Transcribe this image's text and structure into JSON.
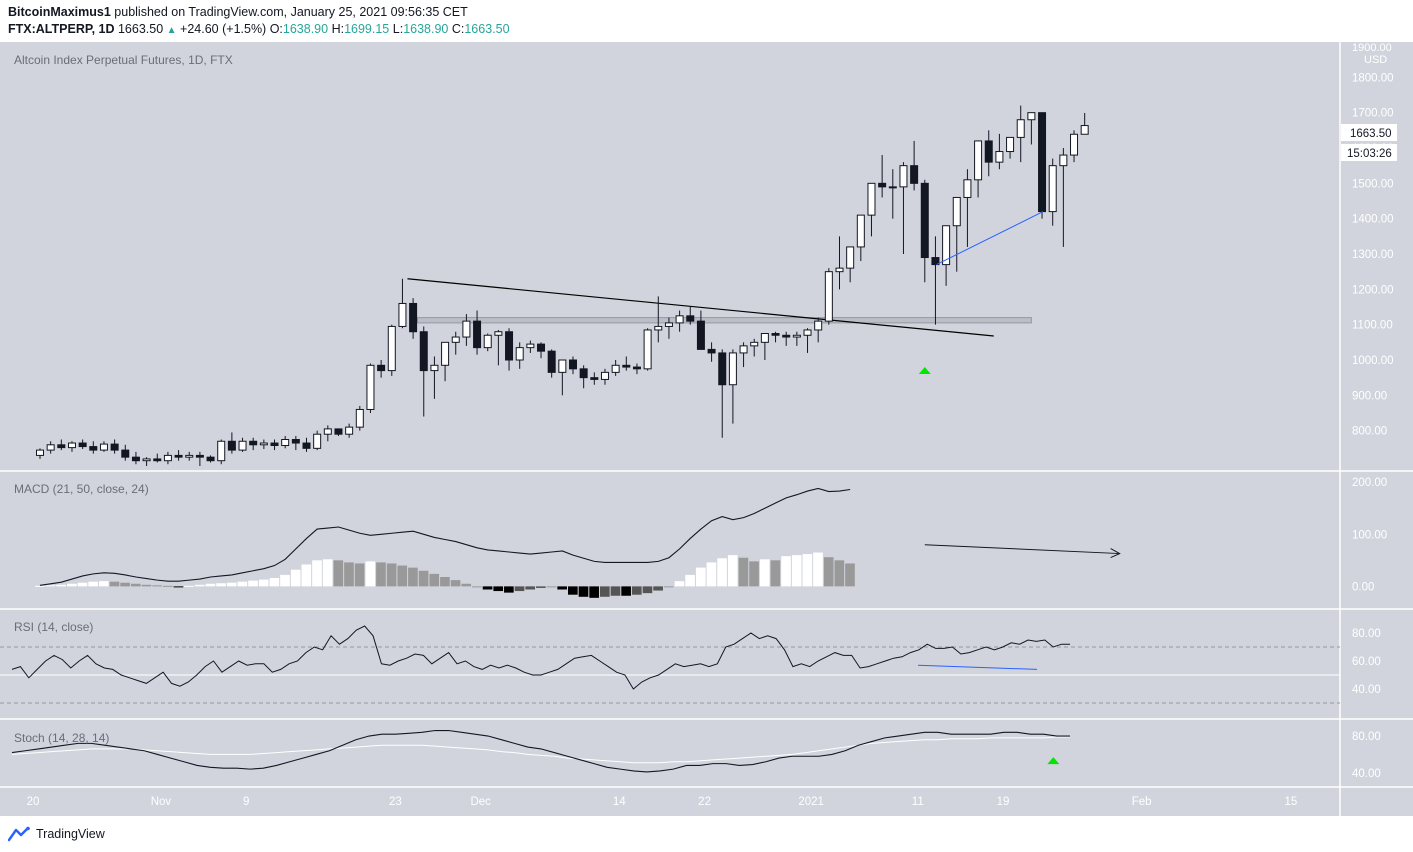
{
  "header": {
    "publisher": "BitcoinMaximus1",
    "published_text": "published on TradingView.com, January 25, 2021 09:56:35 CET",
    "symbol": "FTX:ALTPERP, 1D",
    "last": "1663.50",
    "change": "+24.60 (+1.5%)",
    "o_label": "O:",
    "o_val": "1638.90",
    "h_label": "H:",
    "h_val": "1699.15",
    "l_label": "L:",
    "l_val": "1638.90",
    "c_label": "C:",
    "c_val": "1663.50"
  },
  "footer": {
    "brand": "TradingView"
  },
  "price_panel": {
    "title": "Altcoin Index Perpetual Futures, 1D, FTX",
    "currency": "USD",
    "last_price_tag": "1663.50",
    "countdown_tag": "15:03:26",
    "top_clipped_label": "1900.00"
  },
  "macd_panel": {
    "title": "MACD (21, 50, close, 24)"
  },
  "rsi_panel": {
    "title": "RSI (14, close)"
  },
  "stoch_panel": {
    "title": "Stoch (14, 28, 14)"
  },
  "colors": {
    "background": "#d1d4dc",
    "bull_candle": "#ffffff",
    "bear_candle": "#131722",
    "trendline": "#000000",
    "divergence_line": "#2962ff",
    "signal_arrow": "#00e600",
    "hist_rising": "#ffffff",
    "hist_falling": "#999999"
  },
  "chart_data": [
    {
      "type": "candlestick",
      "title": "Altcoin Index Perpetual Futures, 1D, FTX",
      "ylabel": "USD",
      "ylim": [
        700,
        1900
      ],
      "yticks": [
        "800.00",
        "900.00",
        "1000.00",
        "1100.00",
        "1200.00",
        "1300.00",
        "1400.00",
        "1500.00",
        "1600.00",
        "1700.00",
        "1800.00"
      ],
      "xticks": [
        {
          "label": "20",
          "day": 0
        },
        {
          "label": "Nov",
          "day": 12
        },
        {
          "label": "9",
          "day": 20
        },
        {
          "label": "23",
          "day": 34
        },
        {
          "label": "Dec",
          "day": 42
        },
        {
          "label": "14",
          "day": 55
        },
        {
          "label": "22",
          "day": 63
        },
        {
          "label": "2021",
          "day": 73
        },
        {
          "label": "11",
          "day": 83
        },
        {
          "label": "19",
          "day": 91
        },
        {
          "label": "Feb",
          "day": 104
        },
        {
          "label": "15",
          "day": 118
        }
      ],
      "candles_ohlc": [
        [
          730,
          750,
          720,
          745
        ],
        [
          745,
          770,
          735,
          760
        ],
        [
          760,
          775,
          745,
          752
        ],
        [
          752,
          770,
          740,
          765
        ],
        [
          765,
          775,
          748,
          755
        ],
        [
          755,
          770,
          735,
          745
        ],
        [
          745,
          770,
          740,
          762
        ],
        [
          762,
          775,
          735,
          745
        ],
        [
          745,
          760,
          715,
          725
        ],
        [
          725,
          740,
          705,
          715
        ],
        [
          715,
          725,
          700,
          720
        ],
        [
          720,
          735,
          710,
          715
        ],
        [
          715,
          740,
          705,
          730
        ],
        [
          730,
          745,
          715,
          725
        ],
        [
          725,
          740,
          715,
          730
        ],
        [
          730,
          740,
          700,
          725
        ],
        [
          725,
          730,
          710,
          715
        ],
        [
          715,
          775,
          705,
          770
        ],
        [
          770,
          795,
          735,
          745
        ],
        [
          745,
          780,
          740,
          770
        ],
        [
          770,
          780,
          745,
          760
        ],
        [
          760,
          775,
          748,
          765
        ],
        [
          765,
          775,
          745,
          758
        ],
        [
          758,
          785,
          750,
          775
        ],
        [
          775,
          785,
          745,
          765
        ],
        [
          765,
          780,
          740,
          750
        ],
        [
          750,
          800,
          745,
          790
        ],
        [
          790,
          815,
          770,
          805
        ],
        [
          805,
          805,
          785,
          790
        ],
        [
          790,
          820,
          780,
          810
        ],
        [
          810,
          870,
          800,
          860
        ],
        [
          860,
          990,
          850,
          985
        ],
        [
          985,
          1000,
          950,
          970
        ],
        [
          970,
          1100,
          955,
          1095
        ],
        [
          1095,
          1230,
          1090,
          1160
        ],
        [
          1160,
          1175,
          1060,
          1080
        ],
        [
          1080,
          1095,
          840,
          970
        ],
        [
          970,
          1010,
          890,
          985
        ],
        [
          985,
          1010,
          940,
          1050
        ],
        [
          1050,
          1080,
          1015,
          1065
        ],
        [
          1065,
          1130,
          1040,
          1110
        ],
        [
          1110,
          1140,
          1015,
          1035
        ],
        [
          1035,
          1075,
          1025,
          1070
        ],
        [
          1070,
          1085,
          985,
          1080
        ],
        [
          1080,
          1090,
          970,
          1000
        ],
        [
          1000,
          1050,
          975,
          1035
        ],
        [
          1035,
          1055,
          1020,
          1045
        ],
        [
          1045,
          1050,
          1005,
          1025
        ],
        [
          1025,
          1030,
          950,
          965
        ],
        [
          965,
          1000,
          900,
          1000
        ],
        [
          1000,
          1010,
          960,
          975
        ],
        [
          975,
          985,
          920,
          950
        ],
        [
          950,
          965,
          930,
          945
        ],
        [
          945,
          975,
          930,
          965
        ],
        [
          965,
          1000,
          955,
          985
        ],
        [
          985,
          1010,
          970,
          980
        ],
        [
          980,
          990,
          960,
          975
        ],
        [
          975,
          1090,
          970,
          1085
        ],
        [
          1085,
          1180,
          1050,
          1095
        ],
        [
          1095,
          1120,
          1060,
          1105
        ],
        [
          1105,
          1140,
          1080,
          1125
        ],
        [
          1125,
          1150,
          1100,
          1110
        ],
        [
          1110,
          1140,
          1060,
          1030
        ],
        [
          1030,
          1050,
          995,
          1020
        ],
        [
          1020,
          1030,
          780,
          930
        ],
        [
          930,
          1030,
          820,
          1020
        ],
        [
          1020,
          1050,
          980,
          1040
        ],
        [
          1040,
          1060,
          1010,
          1050
        ],
        [
          1050,
          1070,
          1000,
          1075
        ],
        [
          1075,
          1080,
          1050,
          1070
        ],
        [
          1070,
          1080,
          1040,
          1065
        ],
        [
          1065,
          1080,
          1040,
          1070
        ],
        [
          1070,
          1090,
          1020,
          1085
        ],
        [
          1085,
          1120,
          1050,
          1110
        ],
        [
          1110,
          1260,
          1100,
          1250
        ],
        [
          1250,
          1350,
          1200,
          1260
        ],
        [
          1260,
          1300,
          1220,
          1320
        ],
        [
          1320,
          1380,
          1280,
          1410
        ],
        [
          1410,
          1500,
          1350,
          1500
        ],
        [
          1500,
          1580,
          1460,
          1490
        ],
        [
          1490,
          1540,
          1400,
          1490
        ],
        [
          1490,
          1560,
          1300,
          1550
        ],
        [
          1550,
          1620,
          1480,
          1500
        ],
        [
          1500,
          1510,
          1220,
          1290
        ],
        [
          1290,
          1350,
          1100,
          1270
        ],
        [
          1270,
          1300,
          1210,
          1380
        ],
        [
          1380,
          1450,
          1250,
          1460
        ],
        [
          1460,
          1540,
          1320,
          1510
        ],
        [
          1510,
          1570,
          1460,
          1620
        ],
        [
          1620,
          1650,
          1520,
          1560
        ],
        [
          1560,
          1640,
          1540,
          1590
        ],
        [
          1590,
          1620,
          1570,
          1630
        ],
        [
          1630,
          1720,
          1560,
          1680
        ],
        [
          1680,
          1690,
          1610,
          1700
        ],
        [
          1700,
          1700,
          1400,
          1420
        ],
        [
          1420,
          1570,
          1380,
          1550
        ],
        [
          1550,
          1600,
          1320,
          1580
        ],
        [
          1580,
          1650,
          1560,
          1638.9
        ],
        [
          1638.9,
          1699.15,
          1638.9,
          1663.5
        ]
      ],
      "annotations": {
        "descending_trendline": [
          [
            34,
            1230
          ],
          [
            86,
            1080
          ]
        ],
        "support_zone": {
          "x0": 34,
          "x1": 93,
          "y_low": 1105,
          "y_high": 1120
        },
        "bull_divergence_line": [
          [
            84,
            1270
          ],
          [
            94,
            1420
          ]
        ],
        "signal_arrow": {
          "day": 83,
          "price": 1000
        }
      }
    },
    {
      "type": "line",
      "title": "MACD (21, 50, close, 24)",
      "ylim": [
        -30,
        210
      ],
      "yticks": [
        "0.00",
        "100.00",
        "200.00"
      ],
      "series": [
        {
          "name": "MACD",
          "values": [
            2,
            5,
            8,
            14,
            20,
            24,
            26,
            25,
            22,
            18,
            15,
            12,
            10,
            10,
            12,
            14,
            18,
            20,
            22,
            26,
            30,
            34,
            40,
            52,
            72,
            92,
            110,
            112,
            114,
            108,
            102,
            98,
            100,
            102,
            104,
            106,
            100,
            94,
            90,
            86,
            80,
            74,
            70,
            68,
            66,
            64,
            62,
            64,
            66,
            68,
            60,
            54,
            48,
            46,
            46,
            46,
            46,
            46,
            48,
            55,
            72,
            92,
            110,
            126,
            134,
            128,
            132,
            140,
            150,
            160,
            170,
            176,
            183,
            188,
            182,
            183,
            186
          ]
        },
        {
          "name": "Histogram",
          "values": [
            1,
            2,
            3,
            5,
            7,
            9,
            10,
            9,
            7,
            5,
            3,
            2,
            1,
            -1,
            1,
            3,
            5,
            6,
            7,
            9,
            11,
            13,
            16,
            22,
            32,
            42,
            50,
            52,
            50,
            46,
            44,
            48,
            46,
            44,
            40,
            36,
            30,
            24,
            18,
            12,
            5,
            0,
            -6,
            -9,
            -12,
            -9,
            -6,
            -3,
            0,
            -6,
            -16,
            -20,
            -22,
            -20,
            -18,
            -18,
            -16,
            -13,
            -8,
            0,
            10,
            22,
            36,
            46,
            54,
            60,
            55,
            48,
            52,
            50,
            58,
            60,
            62,
            65,
            56,
            50,
            44
          ]
        }
      ],
      "annotation": {
        "divergence_arrow_from": [
          83,
          80
        ],
        "divergence_arrow_to": [
          98,
          63
        ]
      }
    },
    {
      "type": "line",
      "title": "RSI (14, close)",
      "ylim": [
        20,
        95
      ],
      "yticks": [
        "40.00",
        "60.00",
        "80.00"
      ],
      "bands": [
        30,
        50,
        70
      ],
      "series": [
        {
          "name": "RSI",
          "values": [
            54,
            56,
            48,
            54,
            60,
            64,
            61,
            55,
            60,
            64,
            58,
            55,
            54,
            50,
            48,
            46,
            44,
            48,
            52,
            44,
            42,
            45,
            50,
            56,
            60,
            52,
            56,
            60,
            57,
            58,
            58,
            52,
            54,
            58,
            60,
            66,
            70,
            68,
            78,
            72,
            76,
            82,
            85,
            78,
            58,
            57,
            60,
            62,
            65,
            64,
            58,
            62,
            66,
            58,
            60,
            56,
            54,
            57,
            55,
            57,
            55,
            52,
            50,
            50,
            52,
            54,
            58,
            62,
            63,
            64,
            60,
            56,
            52,
            50,
            40,
            45,
            48,
            50,
            54,
            58,
            56,
            57,
            58,
            56,
            58,
            70,
            72,
            76,
            80,
            76,
            78,
            76,
            68,
            56,
            58,
            56,
            60,
            63,
            66,
            64,
            64,
            55,
            56,
            58,
            60,
            62,
            63,
            66,
            68,
            72,
            69,
            69,
            70,
            65,
            66,
            68,
            70,
            68,
            70,
            73,
            72,
            75,
            74,
            75,
            70,
            72,
            72
          ]
        }
      ],
      "annotation": {
        "divergence_line": [
          [
            84,
            57
          ],
          [
            98,
            54
          ]
        ]
      }
    },
    {
      "type": "line",
      "title": "Stoch (14, 28, 14)",
      "ylim": [
        30,
        92
      ],
      "yticks": [
        "40.00",
        "80.00"
      ],
      "series": [
        {
          "name": "%K",
          "values": [
            62,
            64,
            66,
            68,
            70,
            72,
            72,
            70,
            68,
            66,
            64,
            60,
            56,
            52,
            48,
            46,
            45,
            45,
            44,
            45,
            48,
            52,
            56,
            60,
            64,
            70,
            76,
            80,
            82,
            82,
            83,
            84,
            86,
            86,
            84,
            82,
            80,
            76,
            72,
            68,
            66,
            62,
            58,
            54,
            50,
            46,
            44,
            42,
            41,
            42,
            44,
            48,
            48,
            50,
            50,
            48,
            49,
            52,
            56,
            58,
            58,
            58,
            60,
            64,
            70,
            74,
            78,
            80,
            82,
            84,
            84,
            82,
            82,
            82,
            82,
            84,
            84,
            82,
            82,
            80,
            80
          ]
        },
        {
          "name": "%D",
          "values": [
            60,
            61,
            62,
            63,
            64,
            65,
            66,
            66,
            66,
            66,
            65,
            64,
            63,
            62,
            61,
            60,
            60,
            60,
            60,
            61,
            62,
            63,
            64,
            65,
            66,
            67,
            68,
            69,
            70,
            70,
            70,
            70,
            69,
            68,
            67,
            66,
            65,
            63,
            62,
            60,
            59,
            58,
            56,
            55,
            54,
            53,
            52,
            51,
            51,
            51,
            52,
            52,
            53,
            54,
            55,
            56,
            57,
            58,
            59,
            60,
            62,
            64,
            66,
            68,
            70,
            72,
            73,
            74,
            75,
            76,
            76,
            77,
            77,
            77,
            78,
            78,
            78,
            78,
            78,
            79,
            79
          ]
        }
      ],
      "annotation": {
        "signal_arrow": {
          "day": 96,
          "value": 56
        }
      }
    }
  ]
}
